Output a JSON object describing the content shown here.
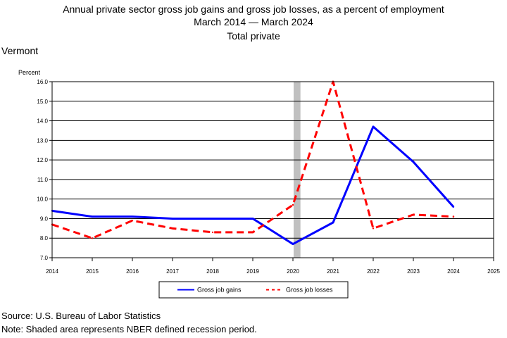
{
  "chart_data": {
    "type": "line",
    "title": "Annual private sector gross job gains and gross job losses, as a percent of employment",
    "subtitle": "March 2014 — March 2024",
    "subtitle2": "Total private",
    "region": "Vermont",
    "ylabel": "Percent",
    "xlabel": "",
    "x_ticks": [
      "2014",
      "2015",
      "2016",
      "2017",
      "2018",
      "2019",
      "2020",
      "2021",
      "2022",
      "2023",
      "2024",
      "2025"
    ],
    "y_ticks": [
      "7.0",
      "8.0",
      "9.0",
      "10.0",
      "11.0",
      "12.0",
      "13.0",
      "14.0",
      "15.0",
      "16.0"
    ],
    "xlim": [
      2014,
      2025
    ],
    "ylim": [
      7.0,
      16.0
    ],
    "grid": "horizontal",
    "recession": {
      "start": 2020.0,
      "end": 2020.17
    },
    "series": [
      {
        "name": "Gross job gains",
        "color": "#0000ff",
        "dash": "solid",
        "x": [
          2014,
          2015,
          2016,
          2017,
          2018,
          2019,
          2020,
          2021,
          2022,
          2023,
          2024
        ],
        "values": [
          9.4,
          9.1,
          9.1,
          9.0,
          9.0,
          9.0,
          7.7,
          8.8,
          13.7,
          11.9,
          9.6
        ]
      },
      {
        "name": "Gross job losses",
        "color": "#ff0000",
        "dash": "dashed",
        "x": [
          2014,
          2015,
          2016,
          2017,
          2018,
          2019,
          2020,
          2021,
          2022,
          2023,
          2024
        ],
        "values": [
          8.7,
          8.0,
          8.9,
          8.5,
          8.3,
          8.3,
          9.7,
          16.0,
          8.5,
          9.2,
          9.1
        ]
      }
    ],
    "legend_position": "bottom-center"
  },
  "footer": {
    "source": "Source: U.S. Bureau of Labor Statistics",
    "note": "Note: Shaded area represents NBER defined recession period."
  }
}
